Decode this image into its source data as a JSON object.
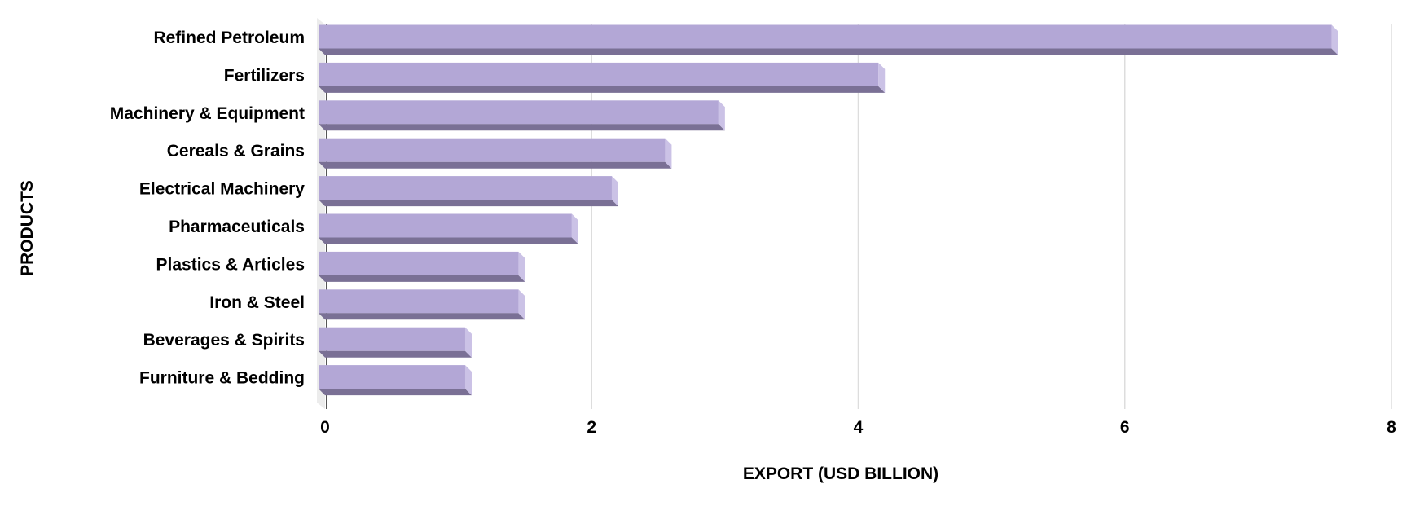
{
  "chart_data": {
    "type": "bar",
    "orientation": "horizontal",
    "style": "3d",
    "title": "",
    "xlabel": "EXPORT (USD BILLION)",
    "ylabel": "PRODUCTS",
    "xlim": [
      0,
      8
    ],
    "xticks": [
      "0",
      "2",
      "4",
      "6",
      "8"
    ],
    "grid": true,
    "categories": [
      "Refined Petroleum",
      "Fertilizers",
      "Machinery & Equipment",
      "Cereals & Grains",
      "Electrical Machinery",
      "Pharmaceuticals",
      "Plastics & Articles",
      "Iron & Steel",
      "Beverages & Spirits",
      "Furniture & Bedding"
    ],
    "values": [
      7.6,
      4.2,
      3.0,
      2.6,
      2.2,
      1.9,
      1.5,
      1.5,
      1.1,
      1.1
    ],
    "colors": {
      "bar_front": "#b3a7d6",
      "bar_bottom": "#7a7095",
      "bar_side": "#cbc2e6",
      "grid": "#dddddd"
    }
  }
}
